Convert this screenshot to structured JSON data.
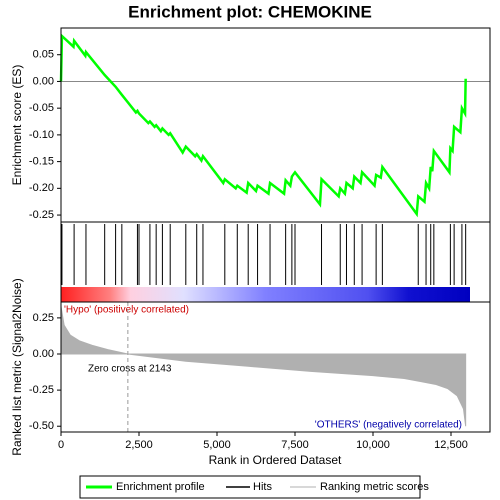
{
  "chart_data": [
    {
      "type": "line",
      "title": "Enrichment plot: CHEMOKINE",
      "ylabel": "Enrichment score (ES)",
      "ylim": [
        -0.263,
        0.1
      ],
      "yticks": [
        0.05,
        {
          "value": 0,
          "label": "0.00"
        },
        -0.05,
        {
          "value": -0.1,
          "label": "-0.10"
        },
        -0.15,
        {
          "value": -0.2,
          "label": "-0.20"
        },
        -0.25
      ],
      "series": [
        {
          "name": "Enrichment profile",
          "color": "#00ff00",
          "x": [
            0,
            30,
            400,
            420,
            780,
            800,
            1400,
            1750,
            1950,
            2400,
            2450,
            2500,
            2800,
            2850,
            3000,
            3050,
            3200,
            3250,
            3450,
            3500,
            3900,
            4000,
            4300,
            4350,
            4500,
            4550,
            5200,
            5250,
            5600,
            5650,
            5950,
            6000,
            6250,
            6300,
            6650,
            6700,
            7150,
            7200,
            7350,
            7400,
            7500,
            8300,
            8350,
            8900,
            8950,
            9100,
            9150,
            9350,
            9400,
            9600,
            9650,
            10050,
            10100,
            10250,
            10300,
            11400,
            11450,
            11650,
            11700,
            11800,
            11850,
            11900,
            11950,
            12450,
            12480,
            12550,
            12600,
            12800,
            12850,
            12950,
            12970
          ],
          "values": [
            0,
            0.085,
            0.065,
            0.076,
            0.048,
            0.055,
            0.012,
            -0.01,
            -0.025,
            -0.058,
            -0.055,
            -0.06,
            -0.078,
            -0.075,
            -0.085,
            -0.082,
            -0.093,
            -0.088,
            -0.1,
            -0.097,
            -0.133,
            -0.122,
            -0.14,
            -0.136,
            -0.148,
            -0.14,
            -0.19,
            -0.183,
            -0.2,
            -0.195,
            -0.208,
            -0.19,
            -0.205,
            -0.195,
            -0.21,
            -0.19,
            -0.21,
            -0.185,
            -0.195,
            -0.178,
            -0.17,
            -0.23,
            -0.183,
            -0.215,
            -0.2,
            -0.21,
            -0.19,
            -0.2,
            -0.178,
            -0.19,
            -0.17,
            -0.195,
            -0.175,
            -0.18,
            -0.16,
            -0.248,
            -0.215,
            -0.225,
            -0.19,
            -0.2,
            -0.16,
            -0.168,
            -0.13,
            -0.17,
            -0.125,
            -0.13,
            -0.085,
            -0.095,
            -0.05,
            -0.06,
            0.005
          ]
        }
      ]
    },
    {
      "type": "hits",
      "name": "Hits",
      "color": "#000000",
      "x": [
        30,
        420,
        800,
        1400,
        1750,
        1950,
        2450,
        2500,
        2850,
        3050,
        3250,
        3500,
        4000,
        4350,
        4550,
        5250,
        5650,
        6000,
        6300,
        6700,
        7200,
        7400,
        7500,
        8350,
        8950,
        9150,
        9400,
        9650,
        10100,
        10300,
        11450,
        11700,
        11850,
        11950,
        12480,
        12600,
        12850,
        12970
      ]
    },
    {
      "type": "area",
      "ylabel": "Ranked list metric (Signal2Noise)",
      "xlabel": "Rank in Ordered Dataset",
      "xlim": [
        0,
        13750
      ],
      "xticks": [
        0,
        {
          "value": 2500,
          "label": "2,500"
        },
        {
          "value": 5000,
          "label": "5,000"
        },
        {
          "value": 7500,
          "label": "7,500"
        },
        {
          "value": 10000,
          "label": "10,000"
        },
        {
          "value": 12500,
          "label": "12,500"
        }
      ],
      "ylim": [
        -0.54,
        0.36
      ],
      "yticks": [
        0.25,
        {
          "value": 0,
          "label": "0.00"
        },
        -0.25,
        {
          "value": -0.5,
          "label": "-0.50"
        }
      ],
      "zero_cross": 2143,
      "zero_cross_label": "Zero cross at 2143",
      "pos_label": "'Hypo' (positively correlated)",
      "neg_label": "'OTHERS' (negatively correlated)",
      "series": [
        {
          "name": "Ranking metric scores",
          "color": "#b0b0b0",
          "x": [
            0,
            100,
            300,
            600,
            1000,
            1500,
            2143,
            4000,
            6000,
            8000,
            10000,
            11000,
            11500,
            12000,
            12400,
            12700,
            12900,
            12970
          ],
          "values": [
            0.33,
            0.2,
            0.13,
            0.09,
            0.06,
            0.03,
            0,
            -0.05,
            -0.085,
            -0.12,
            -0.15,
            -0.17,
            -0.19,
            -0.21,
            -0.24,
            -0.29,
            -0.38,
            -0.5
          ]
        }
      ]
    }
  ]
}
